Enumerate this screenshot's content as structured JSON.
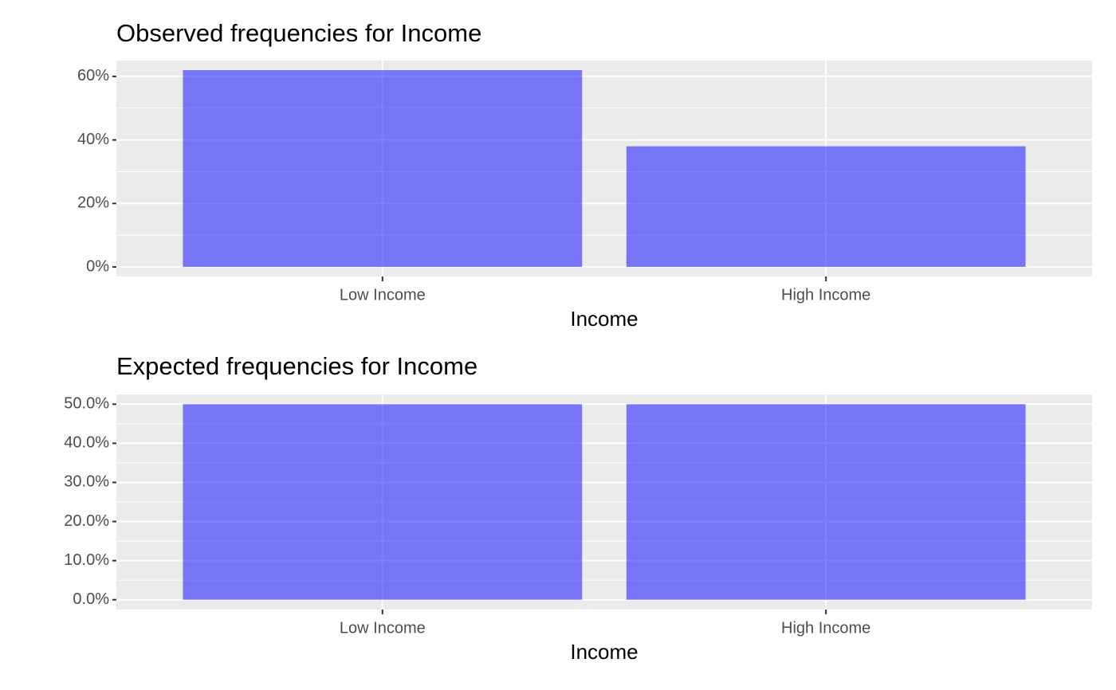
{
  "chart_data": [
    {
      "type": "bar",
      "title": "Observed frequencies for Income",
      "x_label": "Income",
      "categories": [
        "Low Income",
        "High Income"
      ],
      "values": [
        62,
        38
      ],
      "color": "#0000ff",
      "alpha": 0.5,
      "ylim": [
        -3,
        65
      ],
      "yticks": [
        {
          "value": 0,
          "label": "0%"
        },
        {
          "value": 20,
          "label": "20%"
        },
        {
          "value": 40,
          "label": "40%"
        },
        {
          "value": 60,
          "label": "60%"
        }
      ],
      "minor_yticks": [
        10,
        30,
        50
      ],
      "grid": true
    },
    {
      "type": "bar",
      "title": "Expected frequencies for Income",
      "x_label": "Income",
      "categories": [
        "Low Income",
        "High Income"
      ],
      "values": [
        50,
        50
      ],
      "color": "#0000ff",
      "alpha": 0.5,
      "ylim": [
        -2.5,
        52.5
      ],
      "yticks": [
        {
          "value": 0,
          "label": "0.0%"
        },
        {
          "value": 10,
          "label": "10.0%"
        },
        {
          "value": 20,
          "label": "20.0%"
        },
        {
          "value": 30,
          "label": "30.0%"
        },
        {
          "value": 40,
          "label": "40.0%"
        },
        {
          "value": 50,
          "label": "50.0%"
        }
      ],
      "minor_yticks": [
        5,
        15,
        25,
        35,
        45
      ],
      "grid": true
    }
  ]
}
